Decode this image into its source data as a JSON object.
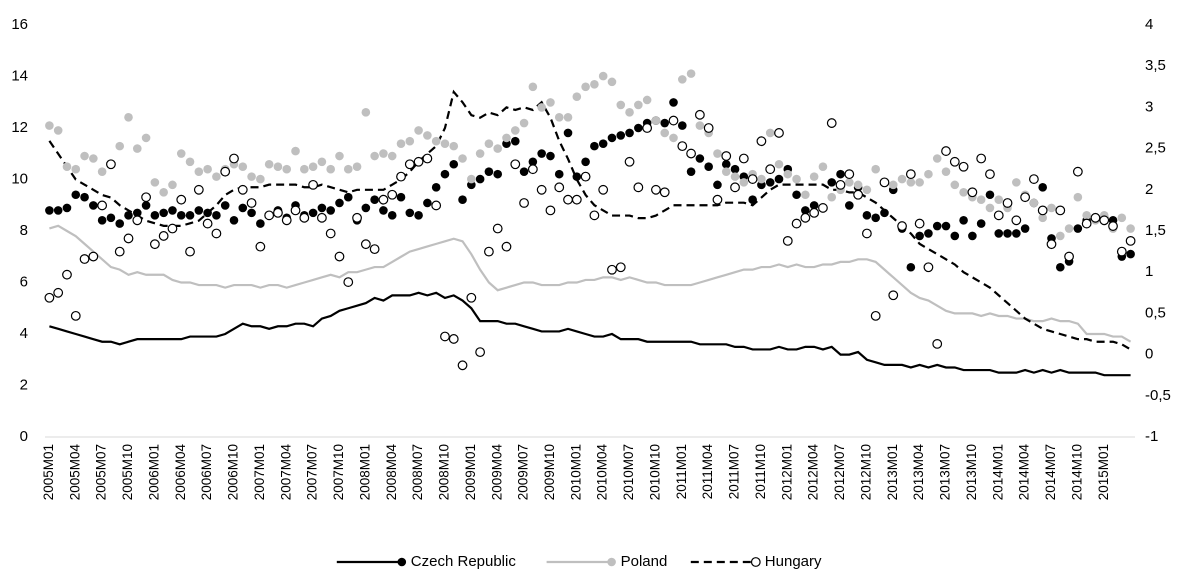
{
  "chart_data": {
    "type": "line",
    "categories": [
      "2005M01",
      null,
      null,
      "2005M04",
      null,
      null,
      "2005M07",
      null,
      null,
      "2005M10",
      null,
      null,
      "2006M01",
      null,
      null,
      "2006M04",
      null,
      null,
      "2006M07",
      null,
      null,
      "2006M10",
      null,
      null,
      "2007M01",
      null,
      null,
      "2007M04",
      null,
      null,
      "2007M07",
      null,
      null,
      "2007M10",
      null,
      null,
      "2008M01",
      null,
      null,
      "2008M04",
      null,
      null,
      "2008M07",
      null,
      null,
      "2008M10",
      null,
      null,
      "2009M01",
      null,
      null,
      "2009M04",
      null,
      null,
      "2009M07",
      null,
      null,
      "2009M10",
      null,
      null,
      "2010M01",
      null,
      null,
      "2010M04",
      null,
      null,
      "2010M07",
      null,
      null,
      "2010M10",
      null,
      null,
      "2011M01",
      null,
      null,
      "2011M04",
      null,
      null,
      "2011M07",
      null,
      null,
      "2011M10",
      null,
      null,
      "2012M01",
      null,
      null,
      "2012M04",
      null,
      null,
      "2012M07",
      null,
      null,
      "2012M10",
      null,
      null,
      "2013M01",
      null,
      null,
      "2013M04",
      null,
      null,
      "2013M07",
      null,
      null,
      "2013M10",
      null,
      null,
      "2014M01",
      null,
      null,
      "2014M04",
      null,
      null,
      "2014M07",
      null,
      null,
      "2014M10",
      null,
      null,
      "2015M01",
      null,
      null,
      null
    ],
    "ylim": [
      0,
      16
    ],
    "yticks": [
      0,
      2,
      4,
      6,
      8,
      10,
      12,
      14,
      16
    ],
    "y2lim": [
      -1,
      4
    ],
    "y2ticks": [
      -1,
      {
        "value": -0.5,
        "label": "-0,5"
      },
      0,
      {
        "value": 0.5,
        "label": "0,5"
      },
      1,
      {
        "value": 1.5,
        "label": "1,5"
      },
      2,
      {
        "value": 2.5,
        "label": "2,5"
      },
      3,
      {
        "value": 3.5,
        "label": "3,5"
      },
      4
    ],
    "grid": false,
    "legend": "bottom",
    "series": [
      {
        "name": "Czech Republic",
        "color": "#000000",
        "dash": "solid",
        "marker_style": "filled",
        "values": [
          4.3,
          4.2,
          4.1,
          4.0,
          3.9,
          3.8,
          3.7,
          3.7,
          3.6,
          3.7,
          3.8,
          3.8,
          3.8,
          3.8,
          3.8,
          3.8,
          3.9,
          3.9,
          3.9,
          3.9,
          4.0,
          4.2,
          4.4,
          4.3,
          4.3,
          4.2,
          4.3,
          4.3,
          4.4,
          4.4,
          4.3,
          4.6,
          4.7,
          4.9,
          5.0,
          5.1,
          5.2,
          5.4,
          5.3,
          5.5,
          5.5,
          5.5,
          5.6,
          5.5,
          5.6,
          5.4,
          5.5,
          5.3,
          5.0,
          4.5,
          4.5,
          4.5,
          4.4,
          4.4,
          4.3,
          4.2,
          4.1,
          4.1,
          4.1,
          4.2,
          4.1,
          4.0,
          3.9,
          3.9,
          4.0,
          3.8,
          3.8,
          3.8,
          3.7,
          3.7,
          3.7,
          3.7,
          3.7,
          3.7,
          3.6,
          3.6,
          3.6,
          3.6,
          3.5,
          3.5,
          3.4,
          3.4,
          3.4,
          3.5,
          3.4,
          3.4,
          3.5,
          3.5,
          3.4,
          3.5,
          3.2,
          3.2,
          3.3,
          3.0,
          2.9,
          2.8,
          2.8,
          2.8,
          2.7,
          2.8,
          2.7,
          2.8,
          2.7,
          2.7,
          2.6,
          2.6,
          2.6,
          2.6,
          2.5,
          2.5,
          2.5,
          2.6,
          2.5,
          2.6,
          2.5,
          2.6,
          2.5,
          2.5,
          2.5,
          2.5,
          2.4,
          2.4,
          2.4,
          2.4
        ],
        "marker_values": [
          1.75,
          1.75,
          1.78,
          1.94,
          1.91,
          1.81,
          1.63,
          1.66,
          1.59,
          1.69,
          1.72,
          1.81,
          1.69,
          1.72,
          1.75,
          1.69,
          1.69,
          1.75,
          1.72,
          1.69,
          1.81,
          1.63,
          1.78,
          1.72,
          1.59,
          1.69,
          1.75,
          1.66,
          1.81,
          1.69,
          1.72,
          1.78,
          1.75,
          1.84,
          1.91,
          1.63,
          1.78,
          1.88,
          1.75,
          1.69,
          1.91,
          1.72,
          1.69,
          1.84,
          2.03,
          2.19,
          2.31,
          1.88,
          2.06,
          2.13,
          2.22,
          2.19,
          2.56,
          2.59,
          2.22,
          2.34,
          2.44,
          2.41,
          2.19,
          2.69,
          2.16,
          2.34,
          2.53,
          2.56,
          2.63,
          2.66,
          2.69,
          2.75,
          2.81,
          2.84,
          2.81,
          3.06,
          2.78,
          2.22,
          2.38,
          2.28,
          2.06,
          2.31,
          2.25,
          2.16,
          1.88,
          2.06,
          2.09,
          2.13,
          2.25,
          1.94,
          1.75,
          1.81,
          1.78,
          2.09,
          2.19,
          1.81,
          2.03,
          1.69,
          1.66,
          1.72,
          2.0,
          1.53,
          1.06,
          1.44,
          1.47,
          1.56,
          1.56,
          1.44,
          1.63,
          1.44,
          1.59,
          1.94,
          1.47,
          1.47,
          1.47,
          1.53,
          1.84,
          2.03,
          1.41,
          1.06,
          1.13,
          1.53,
          1.63,
          1.66,
          1.66,
          1.63,
          1.19,
          1.22
        ]
      },
      {
        "name": "Poland",
        "color": "#bfbfbf",
        "dash": "solid",
        "marker_style": "filled",
        "values": [
          8.1,
          8.2,
          8.0,
          7.8,
          7.5,
          7.2,
          6.9,
          6.6,
          6.5,
          6.3,
          6.4,
          6.3,
          6.3,
          6.3,
          6.1,
          6.0,
          6.0,
          5.9,
          5.9,
          5.9,
          5.8,
          5.9,
          5.9,
          5.9,
          5.8,
          5.9,
          5.9,
          5.8,
          5.9,
          6.0,
          6.1,
          6.2,
          6.3,
          6.2,
          6.4,
          6.4,
          6.5,
          6.6,
          6.6,
          6.8,
          7.0,
          7.2,
          7.3,
          7.4,
          7.5,
          7.6,
          7.7,
          7.6,
          7.1,
          6.5,
          6.0,
          5.7,
          5.8,
          5.9,
          6.0,
          6.0,
          5.9,
          5.9,
          5.9,
          6.0,
          6.0,
          6.1,
          6.1,
          6.2,
          6.2,
          6.1,
          6.2,
          6.1,
          6.0,
          6.0,
          5.9,
          5.9,
          5.9,
          5.9,
          6.0,
          6.1,
          6.2,
          6.3,
          6.4,
          6.5,
          6.5,
          6.6,
          6.6,
          6.7,
          6.6,
          6.7,
          6.6,
          6.6,
          6.7,
          6.7,
          6.8,
          6.8,
          6.9,
          6.9,
          6.8,
          6.5,
          6.2,
          5.9,
          5.6,
          5.4,
          5.3,
          5.1,
          4.9,
          4.8,
          4.8,
          4.8,
          4.7,
          4.8,
          4.7,
          4.7,
          4.6,
          4.6,
          4.5,
          4.5,
          4.6,
          4.5,
          4.5,
          4.4,
          4.0,
          4.0,
          4.0,
          3.9,
          3.9,
          3.7
        ],
        "marker_values": [
          2.78,
          2.72,
          2.28,
          2.25,
          2.41,
          2.38,
          2.22,
          2.31,
          2.53,
          2.88,
          2.5,
          2.63,
          2.09,
          1.97,
          2.06,
          2.44,
          2.34,
          2.22,
          2.25,
          2.16,
          2.25,
          2.31,
          2.28,
          2.16,
          2.13,
          2.31,
          2.28,
          2.25,
          2.47,
          2.25,
          2.28,
          2.34,
          2.25,
          2.41,
          2.25,
          2.28,
          2.94,
          2.41,
          2.44,
          2.41,
          2.56,
          2.59,
          2.72,
          2.66,
          2.59,
          2.56,
          2.53,
          2.38,
          2.13,
          2.44,
          2.56,
          2.5,
          2.63,
          2.72,
          2.81,
          3.25,
          3.0,
          3.06,
          2.88,
          2.88,
          3.13,
          3.25,
          3.28,
          3.38,
          3.31,
          3.03,
          2.94,
          3.03,
          3.09,
          2.84,
          2.69,
          2.63,
          3.34,
          3.41,
          2.78,
          2.69,
          2.44,
          2.22,
          2.16,
          2.09,
          2.19,
          2.13,
          2.69,
          2.31,
          2.19,
          2.13,
          1.94,
          2.16,
          2.28,
          1.91,
          2.0,
          2.09,
          2.06,
          2.0,
          2.25,
          2.09,
          2.06,
          2.13,
          2.09,
          2.09,
          2.19,
          2.38,
          2.22,
          2.06,
          1.97,
          1.91,
          1.88,
          1.78,
          1.88,
          1.78,
          2.09,
          1.94,
          1.84,
          1.66,
          1.78,
          1.44,
          1.53,
          1.91,
          1.69,
          1.63,
          1.69,
          1.53,
          1.66,
          1.53
        ]
      },
      {
        "name": "Hungary",
        "color": "#000000",
        "dash": "dashed",
        "marker_style": "hollow",
        "values": [
          11.5,
          11.0,
          10.5,
          10.0,
          9.8,
          9.6,
          9.4,
          9.3,
          9.0,
          8.8,
          8.6,
          8.4,
          8.3,
          8.2,
          8.2,
          8.2,
          8.3,
          8.4,
          8.7,
          9.0,
          9.4,
          9.6,
          9.7,
          9.7,
          9.7,
          9.8,
          9.8,
          9.8,
          9.8,
          9.7,
          9.7,
          9.8,
          9.7,
          9.6,
          9.5,
          9.6,
          9.6,
          9.6,
          9.6,
          9.8,
          10.0,
          10.3,
          10.7,
          11.0,
          11.3,
          12.0,
          13.4,
          13.0,
          12.5,
          12.4,
          12.6,
          12.5,
          12.8,
          12.7,
          12.8,
          12.7,
          13.0,
          12.4,
          11.5,
          10.8,
          10.0,
          9.4,
          9.0,
          8.8,
          8.6,
          8.6,
          8.6,
          8.5,
          8.5,
          8.6,
          8.8,
          9.0,
          9.0,
          9.0,
          9.0,
          9.0,
          9.0,
          9.1,
          9.1,
          9.1,
          9.0,
          9.3,
          9.6,
          9.8,
          9.8,
          9.8,
          9.8,
          9.8,
          9.8,
          9.6,
          9.6,
          9.5,
          9.5,
          9.3,
          9.1,
          8.8,
          8.5,
          8.2,
          7.9,
          7.5,
          7.3,
          7.1,
          6.9,
          6.7,
          6.4,
          6.2,
          6.0,
          5.8,
          5.5,
          5.2,
          4.9,
          4.6,
          4.4,
          4.2,
          4.1,
          4.0,
          3.9,
          3.8,
          3.8,
          3.7,
          3.7,
          3.7,
          3.6,
          3.4
        ],
        "marker_values": [
          0.69,
          0.75,
          0.97,
          0.47,
          1.16,
          1.19,
          1.81,
          2.31,
          1.25,
          1.41,
          1.63,
          1.91,
          1.34,
          1.44,
          1.53,
          1.88,
          1.25,
          2.0,
          1.59,
          1.47,
          2.22,
          2.38,
          2.0,
          1.84,
          1.31,
          1.69,
          1.72,
          1.63,
          1.75,
          1.66,
          2.06,
          1.66,
          1.47,
          1.19,
          0.88,
          1.66,
          1.34,
          1.28,
          1.88,
          1.94,
          2.16,
          2.31,
          2.34,
          2.38,
          1.81,
          0.22,
          0.19,
          -0.13,
          0.69,
          0.03,
          1.25,
          1.53,
          1.31,
          2.31,
          1.84,
          2.25,
          2.0,
          1.75,
          2.03,
          1.88,
          1.88,
          2.16,
          1.69,
          2.0,
          1.03,
          1.06,
          2.34,
          2.03,
          2.75,
          2.0,
          1.97,
          2.84,
          2.53,
          2.44,
          2.91,
          2.75,
          1.88,
          2.41,
          2.03,
          2.38,
          2.13,
          2.59,
          2.25,
          2.69,
          1.38,
          1.59,
          1.66,
          1.72,
          1.78,
          2.81,
          2.06,
          2.19,
          1.94,
          1.47,
          0.47,
          2.09,
          0.72,
          1.56,
          2.19,
          1.59,
          1.06,
          0.13,
          2.47,
          2.34,
          2.28,
          1.97,
          2.38,
          2.19,
          1.69,
          1.84,
          1.63,
          1.91,
          2.13,
          1.75,
          1.34,
          1.75,
          1.19,
          2.22,
          1.59,
          1.66,
          1.63,
          1.56,
          1.25,
          1.38
        ]
      }
    ]
  }
}
